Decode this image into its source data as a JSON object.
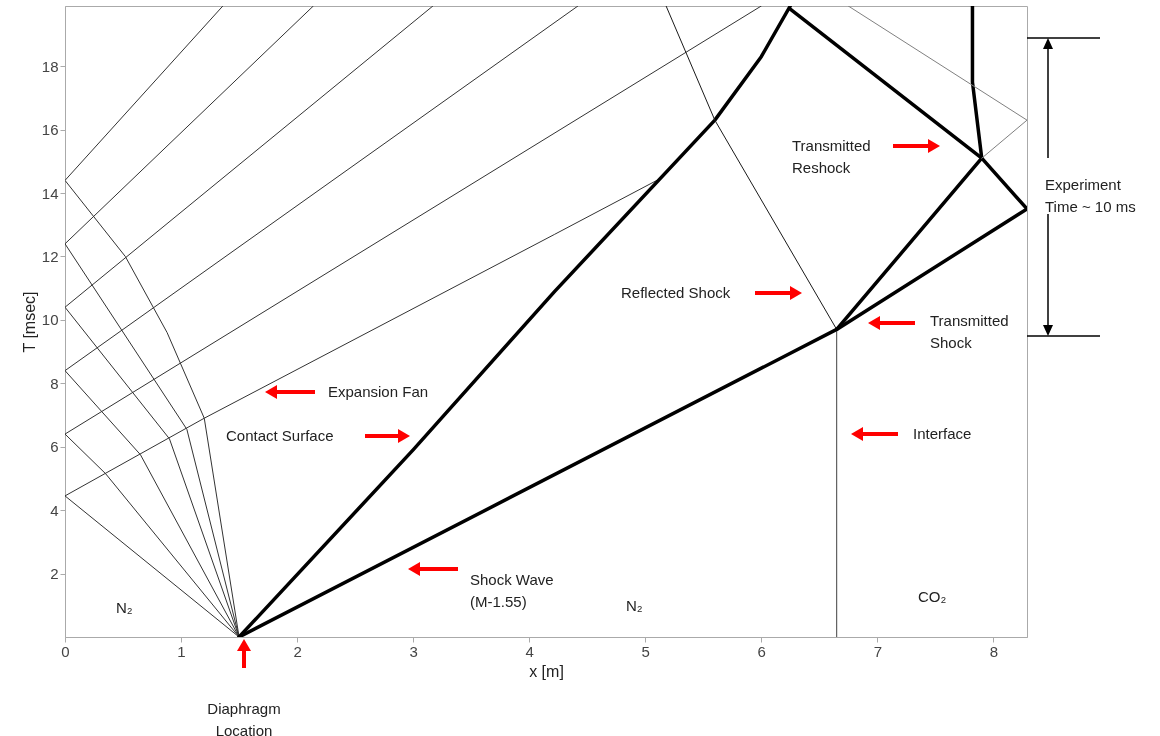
{
  "chart_data": {
    "type": "line",
    "xlabel": "x [m]",
    "ylabel": "T [msec]",
    "xlim": [
      0,
      8.29
    ],
    "ylim": [
      0,
      19.9
    ],
    "xticks": [
      0,
      1,
      2,
      3,
      4,
      5,
      6,
      7,
      8
    ],
    "yticks": [
      2,
      4,
      6,
      8,
      10,
      12,
      14,
      16,
      18
    ],
    "grid": false,
    "marker": "none",
    "line_style": "solid",
    "series": [
      {
        "color": "#333333",
        "x": [
          1.5,
          0,
          1.2,
          4.22,
          5.1
        ],
        "values": [
          0,
          4.45,
          6.9,
          12.7,
          14.4
        ]
      },
      {
        "color": "#333333",
        "x": [
          1.5,
          0.35,
          0,
          6.0
        ],
        "values": [
          0,
          5.15,
          6.4,
          19.9
        ]
      },
      {
        "color": "#333333",
        "x": [
          1.5,
          0.65,
          0,
          4.42
        ],
        "values": [
          0,
          5.75,
          8.4,
          19.9
        ]
      },
      {
        "color": "#333333",
        "x": [
          1.5,
          0.9,
          0,
          3.17
        ],
        "values": [
          0,
          6.25,
          10.4,
          19.9
        ]
      },
      {
        "color": "#333333",
        "x": [
          1.5,
          1.05,
          0,
          2.14
        ],
        "values": [
          0,
          6.55,
          12.4,
          19.9
        ]
      },
      {
        "color": "#333333",
        "x": [
          1.5,
          1.2,
          0.88,
          0.52,
          0,
          1.36
        ],
        "values": [
          0,
          6.9,
          9.6,
          12.0,
          14.4,
          19.9
        ]
      },
      {
        "color": "#000000",
        "x": [
          1.5,
          6.65,
          8.29
        ],
        "values": [
          0,
          9.7,
          13.5
        ]
      },
      {
        "color": "#000000",
        "x": [
          8.29,
          7.9,
          6.25
        ],
        "values": [
          13.5,
          15.1,
          19.8
        ]
      },
      {
        "color": "#000000",
        "x": [
          1.5,
          3,
          4.22,
          5.6,
          6.0,
          6.25
        ],
        "values": [
          0,
          5.9,
          10.9,
          16.3,
          18.3,
          19.9
        ]
      },
      {
        "color": "#1a1a1a",
        "x": [
          6.65,
          5.6,
          5.18
        ],
        "values": [
          9.7,
          16.3,
          19.9
        ]
      },
      {
        "color": "#404040",
        "x": [
          6.65,
          6.65
        ],
        "values": [
          0,
          9.7
        ]
      },
      {
        "color": "#000000",
        "x": [
          6.65,
          7.9,
          7.82,
          7.82
        ],
        "values": [
          9.7,
          15.1,
          17.5,
          19.9
        ]
      },
      {
        "color": "#808080",
        "x": [
          7.9,
          8.29,
          6.75
        ],
        "values": [
          15.1,
          16.3,
          19.9
        ]
      }
    ],
    "annotations": [
      "Expansion Fan",
      "Contact Surface",
      "Shock Wave\n(M-1.55)",
      "Reflected Shock",
      "Transmitted\nShock",
      "Interface",
      "Transmitted\nReshock",
      "Diaphragm\nLocation",
      "N₂",
      "N₂",
      "CO₂",
      "Experiment\nTime ~ 10 ms"
    ]
  }
}
